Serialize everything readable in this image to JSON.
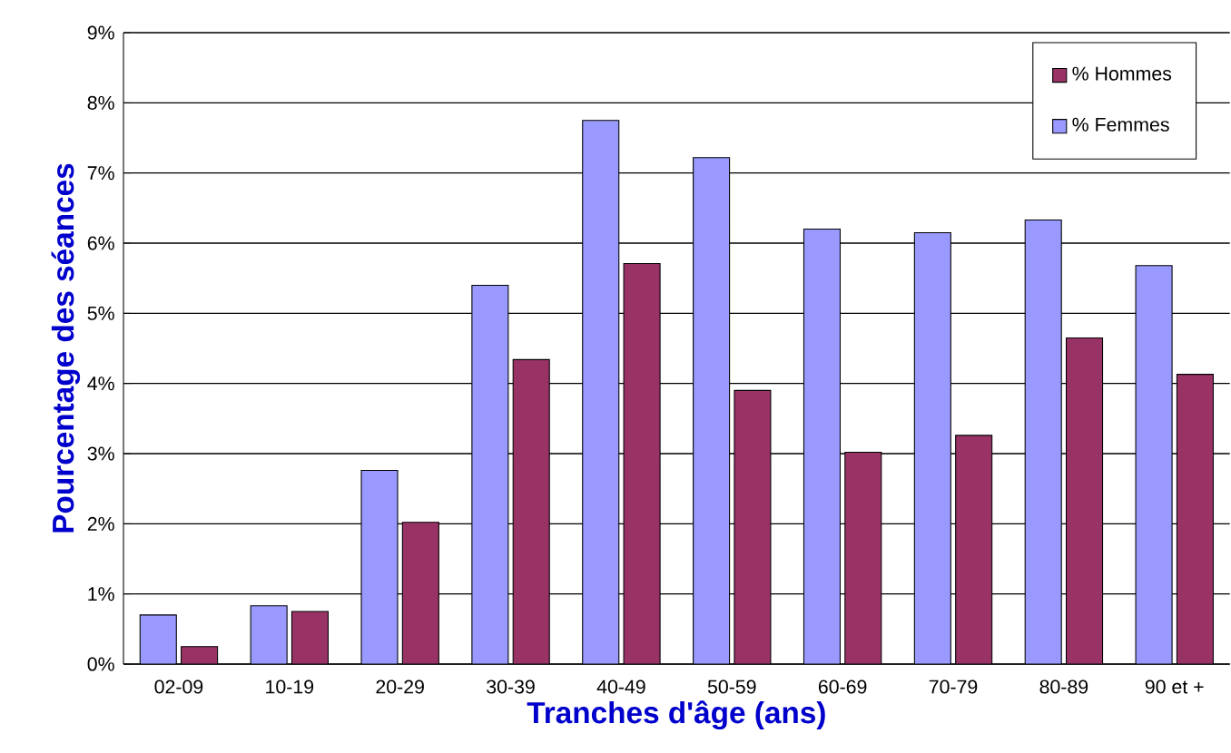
{
  "chart_data": {
    "type": "bar",
    "xlabel": "Tranches d'âge (ans)",
    "ylabel": "Pourcentage des séances",
    "categories": [
      "02-09",
      "10-19",
      "20-29",
      "30-39",
      "40-49",
      "50-59",
      "60-69",
      "70-79",
      "80-89",
      "90 et +"
    ],
    "series": [
      {
        "name": "% Femmes",
        "color": "#9999ff",
        "values": [
          0.7,
          0.83,
          2.76,
          5.4,
          7.75,
          7.22,
          6.2,
          6.15,
          6.33,
          5.68
        ]
      },
      {
        "name": "% Hommes",
        "color": "#993366",
        "values": [
          0.25,
          0.75,
          2.02,
          4.34,
          5.71,
          3.9,
          3.02,
          3.26,
          4.65,
          4.13
        ]
      }
    ],
    "ylim": [
      0,
      9
    ],
    "yticks": [
      {
        "value": 0,
        "label": "0%"
      },
      {
        "value": 1,
        "label": "1%"
      },
      {
        "value": 2,
        "label": "2%"
      },
      {
        "value": 3,
        "label": "3%"
      },
      {
        "value": 4,
        "label": "4%"
      },
      {
        "value": 5,
        "label": "5%"
      },
      {
        "value": 6,
        "label": "6%"
      },
      {
        "value": 7,
        "label": "7%"
      },
      {
        "value": 8,
        "label": "8%"
      },
      {
        "value": 9,
        "label": "9%"
      }
    ],
    "grid": "y",
    "legend": "top right"
  }
}
